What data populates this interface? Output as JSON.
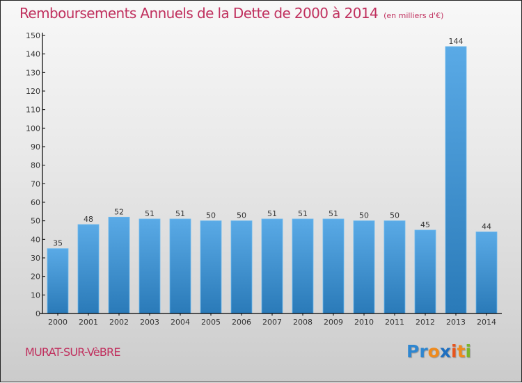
{
  "chart_data": {
    "type": "bar",
    "title": "Remboursements Annuels de la Dette de 2000 à 2014",
    "subtitle": "(en milliers d'€)",
    "xlabel": "",
    "ylabel": "",
    "categories": [
      "2000",
      "2001",
      "2002",
      "2003",
      "2004",
      "2005",
      "2006",
      "2007",
      "2008",
      "2009",
      "2010",
      "2011",
      "2012",
      "2013",
      "2014"
    ],
    "values": [
      35,
      48,
      52,
      51,
      51,
      50,
      50,
      51,
      51,
      51,
      50,
      50,
      45,
      144,
      44
    ],
    "ylim": [
      0,
      150
    ],
    "yticks": [
      0,
      10,
      20,
      30,
      40,
      50,
      60,
      70,
      80,
      90,
      100,
      110,
      120,
      130,
      140,
      150
    ],
    "grid": false,
    "legend": "none",
    "data_labels": true,
    "bar_color_top": "#5aaae6",
    "bar_color_bottom": "#2a7ab8"
  },
  "footer": {
    "town": "MURAT-SUR-VèBRE",
    "logo": {
      "letters": [
        {
          "char": "P",
          "color": "#2e86d0"
        },
        {
          "char": "r",
          "color": "#2e86d0"
        },
        {
          "char": "o",
          "color": "#f08a1c"
        },
        {
          "char": "x",
          "color": "#1e6fc0"
        },
        {
          "char": "i",
          "color": "#e8541c"
        },
        {
          "char": "t",
          "color": "#f08a1c"
        },
        {
          "char": "i",
          "color": "#7bb52a"
        }
      ]
    }
  },
  "colors": {
    "title": "#c0305e",
    "axis": "#000000",
    "text": "#333333"
  }
}
